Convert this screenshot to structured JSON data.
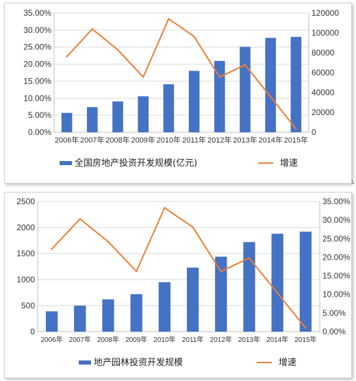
{
  "colors": {
    "bar": "#4472C4",
    "line": "#ED7D31",
    "grid": "#d9d9d9",
    "axis": "#bfbfbf"
  },
  "chart_data": [
    {
      "type": "bar",
      "categories": [
        "2006年",
        "2007年",
        "2008年",
        "2009年",
        "2010年",
        "2011年",
        "2012年",
        "2013年",
        "2014年",
        "2015年"
      ],
      "series": [
        {
          "name": "全国房地产投资开发规模(亿元)",
          "type": "bar",
          "axis": "right",
          "values": [
            19500,
            25300,
            31000,
            36200,
            48300,
            61800,
            71800,
            86000,
            95000,
            96000
          ]
        },
        {
          "name": "增速",
          "type": "line",
          "axis": "left",
          "values": [
            0.222,
            0.303,
            0.242,
            0.162,
            0.333,
            0.281,
            0.162,
            0.198,
            0.104,
            0.01
          ]
        }
      ],
      "left_axis": {
        "ticks": [
          "0.00%",
          "5.00%",
          "10.00%",
          "15.00%",
          "20.00%",
          "25.00%",
          "30.00%",
          "35.00%"
        ],
        "range": [
          0,
          0.35
        ]
      },
      "right_axis": {
        "ticks": [
          "0",
          "20000",
          "40000",
          "60000",
          "80000",
          "100000",
          "120000"
        ],
        "range": [
          0,
          120000
        ]
      },
      "grid": true,
      "legend_position": "bottom"
    },
    {
      "type": "bar",
      "categories": [
        "2006年",
        "2007年",
        "2008年",
        "2009年",
        "2010年",
        "2011年",
        "2012年",
        "2013年",
        "2014年",
        "2015年"
      ],
      "series": [
        {
          "name": "地产园林投资开发规模",
          "type": "bar",
          "axis": "left",
          "values": [
            390,
            500,
            620,
            720,
            950,
            1230,
            1440,
            1720,
            1880,
            1920
          ]
        },
        {
          "name": "增速",
          "type": "line",
          "axis": "right",
          "values": [
            0.222,
            0.303,
            0.242,
            0.162,
            0.333,
            0.281,
            0.162,
            0.198,
            0.104,
            0.01
          ]
        }
      ],
      "left_axis": {
        "ticks": [
          "0",
          "500",
          "1000",
          "1500",
          "2000",
          "2500"
        ],
        "range": [
          0,
          2500
        ]
      },
      "right_axis": {
        "ticks": [
          "0.00%",
          "5.00%",
          "10.00%",
          "15.00%",
          "20.00%",
          "25.00%",
          "30.00%",
          "35.00%"
        ],
        "range": [
          0,
          0.35
        ]
      },
      "grid": true,
      "legend_position": "bottom"
    }
  ]
}
